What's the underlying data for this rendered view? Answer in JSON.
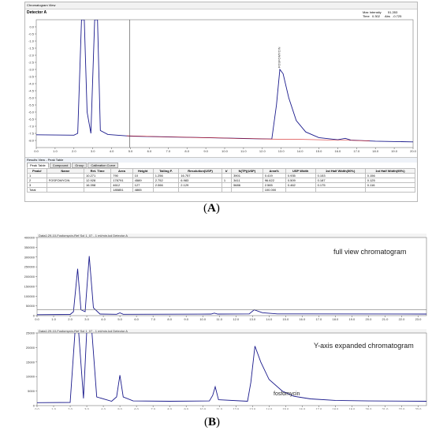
{
  "panel_a": {
    "window_title": "Chromatogram View",
    "detector": "Detector A",
    "max_intensity_label": "Max Intensity",
    "max_intensity_value": "51,353",
    "time_label": "Time",
    "time_value": "0.302",
    "abs_label": "Abs",
    "abs_value": "-0.725",
    "peak_label": "FOSFOMYCIN",
    "results_title": "Results View - Peak Table",
    "tabs": [
      "Peak Table",
      "Compound",
      "Group",
      "Calibration Curve"
    ],
    "table_headers": [
      "Peak#",
      "Name",
      "Ret. Time",
      "Area",
      "Height",
      "Tailing F.",
      "Resolution(USP)",
      "k'",
      "N(TP)(USP)",
      "Area%",
      "USP Width",
      "1st Half Width(50%)",
      "1st Half Width(95%)"
    ],
    "table_rows": [
      [
        "1",
        "",
        "10.271",
        "790",
        "10",
        "1.256",
        "16.757",
        "",
        "3901",
        "0.419",
        "0.935",
        "0.153",
        "0.156"
      ],
      [
        "2",
        "FOSFOMYCIN",
        "12.928",
        "178791",
        "4589",
        "2.752",
        "6.983",
        "1",
        "3411",
        "96.622",
        "0.509",
        "0.187",
        "0.125"
      ],
      [
        "3",
        "",
        "16.398",
        "4612",
        "127",
        "2.066",
        "2.129",
        "",
        "5686",
        "2.565",
        "0.462",
        "0.175",
        "0.116"
      ],
      [
        "Total",
        "",
        "",
        "185851",
        "4865",
        "",
        "",
        "",
        "",
        "100.000",
        "",
        "",
        ""
      ]
    ]
  },
  "caption_a": {
    "open": "(",
    "letter": "A",
    "close": ")"
  },
  "caption_b": {
    "open": "(",
    "letter": "B",
    "close": ")"
  },
  "panel_b": {
    "top_title": "Data1:29-10-Fosfomycin-Ref Sol 1_07 - 1 ml/min.lcd Detector A",
    "bottom_title": "Data1:29-10-Fosfomycin-Ref Sol 1_07 - 1 ml/min.lcd Detector A",
    "top_note": "full view chromatogram",
    "bottom_note": "Y-axis expanded chromatogram",
    "peak_note": "fosfomycin"
  },
  "chart_data": [
    {
      "type": "line",
      "panel": "A",
      "xlim": [
        0.0,
        20.0
      ],
      "ylim": [
        -8.5,
        0.5
      ],
      "x_ticks": [
        "0.0",
        "1.0",
        "2.0",
        "3.0",
        "4.0",
        "5.0",
        "6.0",
        "7.0",
        "8.0",
        "9.0",
        "10.0",
        "11.0",
        "12.0",
        "13.0",
        "14.0",
        "15.0",
        "16.0",
        "17.0",
        "18.0",
        "19.0",
        "20.0"
      ],
      "y_ticks": [
        "0.0",
        "-0.5",
        "-1.0",
        "-1.5",
        "-2.0",
        "-2.5",
        "-3.0",
        "-3.5",
        "-4.0",
        "-4.5",
        "-5.0",
        "-5.5",
        "-6.0",
        "-6.5",
        "-7.0",
        "-7.5",
        "-8.0"
      ],
      "series": [
        {
          "color": "#1a1a8c",
          "points": [
            [
              0,
              -7.6
            ],
            [
              2.0,
              -7.63
            ],
            [
              2.2,
              -7.5
            ],
            [
              2.4,
              0.5
            ],
            [
              2.55,
              0.5
            ],
            [
              2.7,
              -6.0
            ],
            [
              2.9,
              -7.5
            ],
            [
              3.1,
              0.5
            ],
            [
              3.25,
              0.5
            ],
            [
              3.4,
              -7.3
            ],
            [
              3.8,
              -7.58
            ],
            [
              5.0,
              -7.7
            ],
            [
              7.0,
              -7.75
            ],
            [
              9.0,
              -7.8
            ],
            [
              11.0,
              -7.86
            ],
            [
              12.5,
              -7.9
            ],
            [
              12.75,
              -5.5
            ],
            [
              12.93,
              -3.0
            ],
            [
              13.1,
              -3.3
            ],
            [
              13.4,
              -5.0
            ],
            [
              13.8,
              -6.6
            ],
            [
              14.3,
              -7.4
            ],
            [
              15.0,
              -7.8
            ],
            [
              16.0,
              -7.95
            ],
            [
              16.4,
              -7.85
            ],
            [
              16.7,
              -7.98
            ],
            [
              18.0,
              -8.05
            ],
            [
              20.0,
              -8.1
            ]
          ]
        },
        {
          "color": "#d42020",
          "points": [
            [
              4.8,
              -7.67
            ],
            [
              7.0,
              -7.75
            ],
            [
              9.0,
              -7.8
            ],
            [
              11.0,
              -7.86
            ],
            [
              12.4,
              -7.9
            ],
            [
              14.0,
              -7.93
            ],
            [
              16.0,
              -7.97
            ],
            [
              17.7,
              -8.02
            ]
          ]
        }
      ]
    },
    {
      "type": "line",
      "panel": "B-top",
      "xlim": [
        0.0,
        23.5
      ],
      "ylim": [
        0,
        400000
      ],
      "x_ticks": [
        "0.0",
        "1.0",
        "2.0",
        "3.0",
        "4.0",
        "5.0",
        "6.0",
        "7.0",
        "8.0",
        "9.0",
        "10.0",
        "11.0",
        "12.0",
        "13.0",
        "14.0",
        "15.0",
        "16.0",
        "17.0",
        "18.0",
        "19.0",
        "20.0",
        "21.0",
        "22.0",
        "23.0"
      ],
      "y_ticks": [
        "400000",
        "350000",
        "300000",
        "250000",
        "200000",
        "150000",
        "100000",
        "50000",
        "0"
      ],
      "series": [
        {
          "color": "#1a1a8c",
          "points": [
            [
              0,
              5000
            ],
            [
              2.0,
              6000
            ],
            [
              2.2,
              20000
            ],
            [
              2.45,
              240000
            ],
            [
              2.65,
              30000
            ],
            [
              2.9,
              20000
            ],
            [
              3.15,
              305000
            ],
            [
              3.4,
              40000
            ],
            [
              3.8,
              8000
            ],
            [
              4.8,
              7000
            ],
            [
              5.0,
              14000
            ],
            [
              5.2,
              7000
            ],
            [
              10.5,
              8000
            ],
            [
              10.7,
              13000
            ],
            [
              10.9,
              8000
            ],
            [
              12.8,
              9000
            ],
            [
              13.1,
              30000
            ],
            [
              13.6,
              15000
            ],
            [
              14.5,
              9000
            ],
            [
              23.5,
              8000
            ]
          ]
        },
        {
          "color": "#777777",
          "points": [
            [
              0,
              30000
            ],
            [
              23.5,
              30000
            ]
          ]
        }
      ]
    },
    {
      "type": "line",
      "panel": "B-bottom",
      "xlim": [
        0.0,
        23.5
      ],
      "ylim": [
        0,
        25000
      ],
      "x_ticks": [
        "0.0",
        "1.0",
        "2.0",
        "3.0",
        "4.0",
        "5.0",
        "6.0",
        "7.0",
        "8.0",
        "9.0",
        "10.0",
        "11.0",
        "12.0",
        "13.0",
        "14.0",
        "15.0",
        "16.0",
        "17.0",
        "18.0",
        "19.0",
        "20.0",
        "21.0",
        "22.0",
        "23.0"
      ],
      "y_ticks": [
        "25000",
        "20000",
        "15000",
        "10000",
        "5000",
        "0"
      ],
      "series": [
        {
          "color": "#1a1a8c",
          "points": [
            [
              0,
              1000
            ],
            [
              2.0,
              1100
            ],
            [
              2.3,
              26000
            ],
            [
              2.5,
              26000
            ],
            [
              2.8,
              2500
            ],
            [
              3.0,
              26000
            ],
            [
              3.3,
              26000
            ],
            [
              3.6,
              3000
            ],
            [
              4.5,
              1500
            ],
            [
              4.8,
              3000
            ],
            [
              5.0,
              10500
            ],
            [
              5.2,
              3000
            ],
            [
              5.8,
              1600
            ],
            [
              8.0,
              1500
            ],
            [
              10.4,
              1600
            ],
            [
              10.6,
              3500
            ],
            [
              10.75,
              6500
            ],
            [
              10.95,
              2000
            ],
            [
              12.7,
              1500
            ],
            [
              12.9,
              8000
            ],
            [
              13.15,
              20500
            ],
            [
              13.5,
              15000
            ],
            [
              14.0,
              9000
            ],
            [
              14.8,
              5000
            ],
            [
              15.5,
              3200
            ],
            [
              16.5,
              2300
            ],
            [
              18.0,
              1800
            ],
            [
              20.0,
              1600
            ],
            [
              23.5,
              1500
            ]
          ]
        }
      ]
    }
  ]
}
